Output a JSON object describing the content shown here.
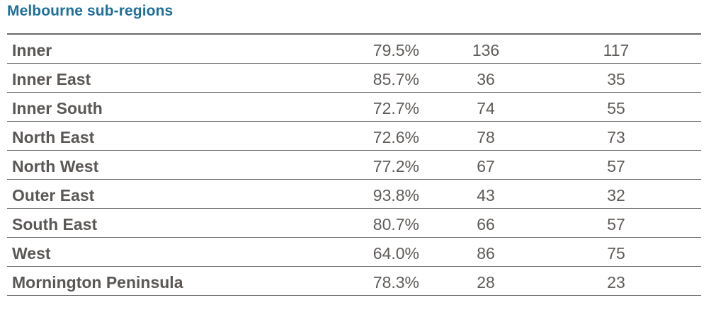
{
  "title": "Melbourne sub-regions",
  "colors": {
    "title": "#1f6f9a",
    "text": "#5e5a58",
    "rule": "#6a6a6a"
  },
  "rows": [
    {
      "region": "Inner",
      "pct": "79.5%",
      "col2": "136",
      "col3": "117"
    },
    {
      "region": "Inner East",
      "pct": "85.7%",
      "col2": "36",
      "col3": "35"
    },
    {
      "region": "Inner South",
      "pct": "72.7%",
      "col2": "74",
      "col3": "55"
    },
    {
      "region": "North East",
      "pct": "72.6%",
      "col2": "78",
      "col3": "73"
    },
    {
      "region": "North West",
      "pct": "77.2%",
      "col2": "67",
      "col3": "57"
    },
    {
      "region": "Outer East",
      "pct": "93.8%",
      "col2": "43",
      "col3": "32"
    },
    {
      "region": "South East",
      "pct": "80.7%",
      "col2": "66",
      "col3": "57"
    },
    {
      "region": "West",
      "pct": "64.0%",
      "col2": "86",
      "col3": "75"
    },
    {
      "region": "Mornington Peninsula",
      "pct": "78.3%",
      "col2": "28",
      "col3": "23"
    }
  ]
}
